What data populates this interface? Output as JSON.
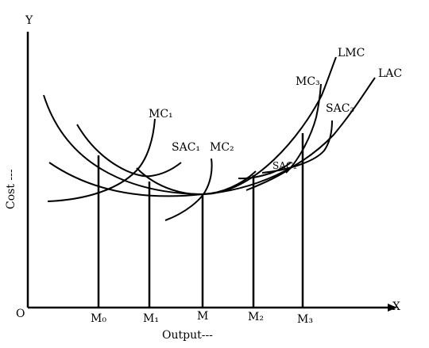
{
  "axes": {
    "y_label": "Y",
    "x_label": "X",
    "origin_label": "O",
    "y_title": "Cost ---",
    "x_title": "Output---"
  },
  "ticks": [
    "M₀",
    "M₁",
    "M",
    "M₂",
    "M₃"
  ],
  "curves": {
    "mc1": "MC₁",
    "sac1": "SAC₁",
    "mc2": "MC₂",
    "sac2": "SAC₂",
    "mc3": "MC₃",
    "sac3": "SAC₃",
    "lmc": "LMC",
    "lac": "LAC"
  }
}
